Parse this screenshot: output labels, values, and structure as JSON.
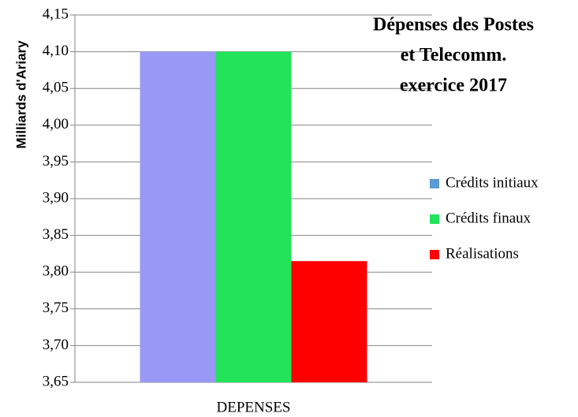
{
  "chart_data": {
    "type": "bar",
    "title": [
      "Dépenses des Postes",
      "et Telecomm.",
      "exercice 2017"
    ],
    "y_label": "Milliards d'Ariary",
    "categories": [
      "DEPENSES"
    ],
    "series": [
      {
        "name": "Crédits initiaux",
        "color": "#9999f5",
        "legend_color": "#5b9bd5",
        "values": [
          4.1
        ]
      },
      {
        "name": "Crédits finaux",
        "color": "#22e35a",
        "legend_color": "#22e35a",
        "values": [
          4.1
        ]
      },
      {
        "name": "Réalisations",
        "color": "#ff0000",
        "legend_color": "#ff0000",
        "values": [
          3.815
        ]
      }
    ],
    "ylim": [
      3.65,
      4.15
    ],
    "yticks": [
      {
        "value": 3.65,
        "label": "3,65"
      },
      {
        "value": 3.7,
        "label": "3,70"
      },
      {
        "value": 3.75,
        "label": "3,75"
      },
      {
        "value": 3.8,
        "label": "3,80"
      },
      {
        "value": 3.85,
        "label": "3,85"
      },
      {
        "value": 3.9,
        "label": "3,90"
      },
      {
        "value": 3.95,
        "label": "3,95"
      },
      {
        "value": 4.0,
        "label": "4,00"
      },
      {
        "value": 4.05,
        "label": "4,05"
      },
      {
        "value": 4.1,
        "label": "4,10"
      },
      {
        "value": 4.15,
        "label": "4,15"
      }
    ],
    "grid": true,
    "legend": "right"
  }
}
